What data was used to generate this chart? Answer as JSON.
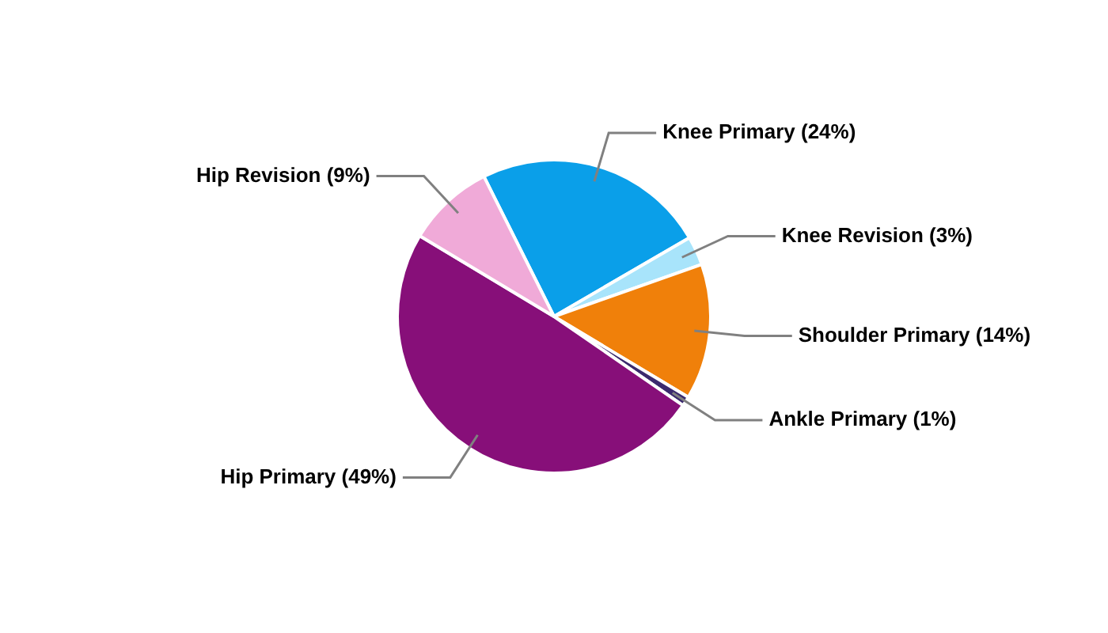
{
  "chart_data": {
    "type": "pie",
    "categories": [
      "Knee Primary (24%)",
      "Knee Revision (3%)",
      "Shoulder Primary (14%)",
      "Ankle Primary (1%)",
      "Hip Primary (49%)",
      "Hip Revision (9%)"
    ],
    "values": [
      24,
      3,
      14,
      1,
      49,
      9
    ],
    "colors": [
      "#0a9fe9",
      "#a8e4fb",
      "#f0800a",
      "#3b2a6e",
      "#870f79",
      "#f0aad8"
    ],
    "legend": false
  }
}
